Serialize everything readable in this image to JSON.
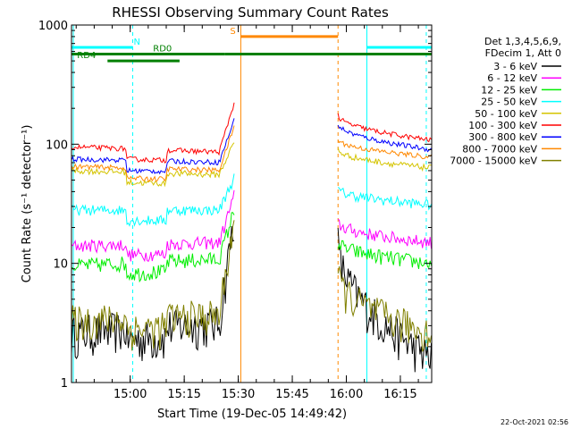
{
  "chart_data": {
    "type": "line",
    "title": "RHESSI Observing Summary Count Rates",
    "xlabel": "Start Time (19-Dec-05 14:49:42)",
    "ylabel": "Count Rate (s⁻¹ detector⁻¹)",
    "footer": "22-Oct-2021 02:56",
    "x_unit": "minutes since 14:49:42 (start time)",
    "xlim": [
      -6,
      94
    ],
    "ylim": [
      1,
      1000
    ],
    "yscale": "log",
    "x_ticks": [
      {
        "v": 10.3,
        "label": "15:00"
      },
      {
        "v": 25.3,
        "label": "15:15"
      },
      {
        "v": 40.3,
        "label": "15:30"
      },
      {
        "v": 55.3,
        "label": "15:45"
      },
      {
        "v": 70.3,
        "label": "16:00"
      },
      {
        "v": 85.3,
        "label": "16:15"
      }
    ],
    "y_ticks": [
      {
        "v": 1,
        "label": "1"
      },
      {
        "v": 10,
        "label": "10"
      },
      {
        "v": 100,
        "label": "100"
      },
      {
        "v": 1000,
        "label": "1000"
      }
    ],
    "legend": {
      "position": "right",
      "header": [
        "Det 1,3,4,5,6,9,",
        "FDecim 1, Att 0"
      ]
    },
    "series": [
      {
        "name": "3 - 6 keV",
        "color": "#000000",
        "start": 2.6,
        "end": 3.2,
        "peak": 30,
        "post_start": 15,
        "post_end": 1.6,
        "noise": 0.8
      },
      {
        "name": "6 - 12 keV",
        "color": "#ff00ff",
        "start": 14,
        "end": 15,
        "peak": 40,
        "post_start": 22,
        "post_end": 15,
        "noise": 0.25
      },
      {
        "name": "12 - 25 keV",
        "color": "#00ee00",
        "start": 9.5,
        "end": 11,
        "peak": 30,
        "post_start": 15,
        "post_end": 10,
        "noise": 0.3
      },
      {
        "name": "25 - 50 keV",
        "color": "#00ffff",
        "start": 28,
        "end": 28,
        "peak": 55,
        "post_start": 42,
        "post_end": 31,
        "noise": 0.2
      },
      {
        "name": "50 - 100 keV",
        "color": "#d4c400",
        "start": 60,
        "end": 55,
        "peak": 110,
        "post_start": 90,
        "post_end": 63,
        "noise": 0.12
      },
      {
        "name": "100 - 300 keV",
        "color": "#ff0000",
        "start": 95,
        "end": 85,
        "peak": 240,
        "post_start": 175,
        "post_end": 108,
        "noise": 0.1
      },
      {
        "name": "300 - 800 keV",
        "color": "#0000ff",
        "start": 75,
        "end": 70,
        "peak": 170,
        "post_start": 150,
        "post_end": 90,
        "noise": 0.1
      },
      {
        "name": "800 - 7000 keV",
        "color": "#ff8800",
        "start": 65,
        "end": 60,
        "peak": 150,
        "post_start": 110,
        "post_end": 78,
        "noise": 0.1
      },
      {
        "name": "7000 - 15000 keV",
        "color": "#808000",
        "start": 3.3,
        "end": 3.7,
        "peak": 28,
        "post_start": 8,
        "post_end": 2.6,
        "noise": 0.7
      }
    ],
    "segments": {
      "obs_windows": [
        [
          -6,
          39.5
        ],
        [
          68,
          94
        ]
      ],
      "gaps": [
        [
          39.5,
          68
        ]
      ],
      "attenuator_breaks": [
        9.3,
        20.5
      ]
    },
    "flags": [
      {
        "label": "N",
        "color": "#00ffff",
        "level": 650,
        "intervals": [
          [
            -6,
            11
          ]
        ]
      },
      {
        "label": "",
        "color": "#00ffff",
        "level": 650,
        "intervals": [
          [
            76,
            94
          ]
        ]
      },
      {
        "label": "S",
        "color": "#ff8800",
        "level": 800,
        "intervals": [
          [
            41,
            68
          ]
        ]
      },
      {
        "label": "RD0",
        "color": "#008000",
        "level": 570,
        "intervals": [
          [
            -6,
            36.5
          ],
          [
            36.5,
            94
          ]
        ]
      },
      {
        "label": "RD4",
        "color": "#008000",
        "level": 500,
        "intervals": [
          [
            4,
            24
          ]
        ]
      }
    ],
    "vertical_markers": [
      {
        "x": -5.5,
        "color": "#00ffff",
        "style": "solid"
      },
      {
        "x": 11,
        "color": "#00ffff",
        "style": "dashed"
      },
      {
        "x": 41,
        "color": "#ff8800",
        "style": "solid"
      },
      {
        "x": 68,
        "color": "#ff8800",
        "style": "dashed"
      },
      {
        "x": 76,
        "color": "#00ffff",
        "style": "solid"
      },
      {
        "x": 92.5,
        "color": "#00ffff",
        "style": "dashed"
      }
    ]
  }
}
